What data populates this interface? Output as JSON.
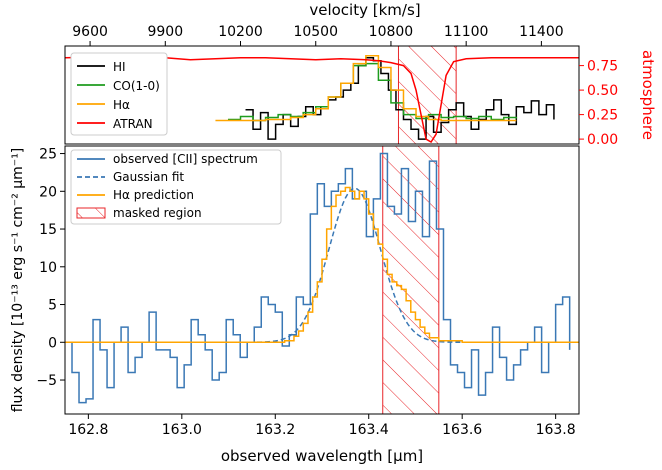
{
  "chart_data": [
    {
      "panel": "top",
      "type": "line",
      "title": "",
      "xlabel": "velocity [km/s]",
      "xlabel_position": "top",
      "xticks": [
        9600,
        9900,
        10200,
        10500,
        10800,
        11100,
        11400
      ],
      "xlim": [
        9500,
        11550
      ],
      "ylabel_left": "",
      "yticks_left": [],
      "ylim_left": [
        0.0,
        1.0
      ],
      "ylabel_right": "atmosphere",
      "yticks_right": [
        "0.00",
        "0.25",
        "0.50",
        "0.75"
      ],
      "ylim_right": [
        -0.05,
        0.95
      ],
      "legend_position": "top-left",
      "masked_region_velocity": [
        10830,
        11060
      ],
      "series": [
        {
          "name": "HI",
          "color": "#000000",
          "step": true,
          "x": [
            10220,
            10250,
            10280,
            10310,
            10340,
            10370,
            10400,
            10430,
            10460,
            10490,
            10520,
            10550,
            10580,
            10610,
            10640,
            10670,
            10700,
            10730,
            10760,
            10790,
            10820,
            10850,
            10880,
            10910,
            10940,
            10970,
            11000,
            11030,
            11060,
            11090,
            11120,
            11150,
            11180,
            11210,
            11240,
            11270,
            11300,
            11330,
            11360,
            11390,
            11420,
            11450
          ],
          "values": [
            0.35,
            0.15,
            0.32,
            0.05,
            0.2,
            0.3,
            0.18,
            0.28,
            0.38,
            0.3,
            0.38,
            0.45,
            0.48,
            0.55,
            0.62,
            0.8,
            0.88,
            0.85,
            0.72,
            0.55,
            0.35,
            0.25,
            0.15,
            0.05,
            0.28,
            0.12,
            0.22,
            0.35,
            0.42,
            0.28,
            0.15,
            0.25,
            0.35,
            0.45,
            0.3,
            0.2,
            0.38,
            0.32,
            0.44,
            0.3,
            0.4,
            0.25
          ]
        },
        {
          "name": "CO(1-0)",
          "color": "#1e9c1e",
          "step": true,
          "x": [
            10150,
            10200,
            10250,
            10300,
            10350,
            10400,
            10450,
            10500,
            10550,
            10600,
            10650,
            10700,
            10750,
            10800,
            10850,
            10900,
            10950,
            11000,
            11050,
            11100,
            11150,
            11200,
            11250,
            11300
          ],
          "values": [
            0.25,
            0.28,
            0.24,
            0.27,
            0.3,
            0.28,
            0.32,
            0.38,
            0.48,
            0.62,
            0.8,
            0.82,
            0.65,
            0.42,
            0.3,
            0.26,
            0.3,
            0.27,
            0.28,
            0.26,
            0.28,
            0.25,
            0.27,
            0.26
          ]
        },
        {
          "name": "Hα",
          "color": "#ffa500",
          "step": true,
          "x": [
            10100,
            10200,
            10300,
            10400,
            10450,
            10500,
            10550,
            10600,
            10650,
            10700,
            10750,
            10800,
            10850,
            10900,
            10950,
            11000,
            11100,
            11200,
            11300
          ],
          "values": [
            0.24,
            0.24,
            0.25,
            0.27,
            0.3,
            0.36,
            0.48,
            0.62,
            0.82,
            0.9,
            0.78,
            0.55,
            0.36,
            0.28,
            0.25,
            0.24,
            0.24,
            0.24,
            0.24
          ]
        },
        {
          "name": "ATRAN",
          "color": "#ff0000",
          "step": false,
          "x": [
            9500,
            9700,
            9900,
            10000,
            10100,
            10200,
            10300,
            10400,
            10500,
            10600,
            10700,
            10750,
            10800,
            10850,
            10880,
            10900,
            10920,
            10940,
            10960,
            10980,
            11000,
            11020,
            11050,
            11100,
            11200,
            11300,
            11400,
            11550
          ],
          "values": [
            0.88,
            0.89,
            0.88,
            0.86,
            0.87,
            0.88,
            0.88,
            0.87,
            0.86,
            0.87,
            0.86,
            0.85,
            0.83,
            0.8,
            0.72,
            0.55,
            0.3,
            0.05,
            0.02,
            0.1,
            0.4,
            0.7,
            0.84,
            0.87,
            0.88,
            0.88,
            0.88,
            0.88
          ]
        }
      ]
    },
    {
      "panel": "bottom",
      "type": "line",
      "title": "",
      "xlabel": "observed wavelength [μm]",
      "ylabel": "flux density [10⁻¹³ erg s⁻¹ cm⁻² μm⁻¹]",
      "xlim": [
        162.75,
        163.85
      ],
      "ylim": [
        -9.5,
        26.0
      ],
      "xticks": [
        "162.8",
        "163.0",
        "163.2",
        "163.4",
        "163.6",
        "163.8"
      ],
      "yticks": [
        "−5",
        "0",
        "5",
        "10",
        "15",
        "20",
        "25"
      ],
      "grid": false,
      "legend_position": "top-left",
      "masked_region": [
        163.43,
        163.55
      ],
      "masked_region_label": "masked region",
      "series": [
        {
          "name": "observed [CII] spectrum",
          "color": "#3a78b5",
          "style": "step",
          "x": [
            162.75,
            162.765,
            162.78,
            162.795,
            162.81,
            162.825,
            162.84,
            162.855,
            162.87,
            162.885,
            162.9,
            162.915,
            162.93,
            162.945,
            162.96,
            162.975,
            162.99,
            163.005,
            163.02,
            163.035,
            163.05,
            163.065,
            163.08,
            163.095,
            163.11,
            163.125,
            163.14,
            163.155,
            163.17,
            163.185,
            163.2,
            163.215,
            163.23,
            163.245,
            163.26,
            163.275,
            163.29,
            163.305,
            163.32,
            163.335,
            163.35,
            163.365,
            163.38,
            163.395,
            163.41,
            163.425,
            163.44,
            163.455,
            163.47,
            163.485,
            163.5,
            163.515,
            163.53,
            163.545,
            163.56,
            163.575,
            163.59,
            163.605,
            163.62,
            163.635,
            163.65,
            163.665,
            163.68,
            163.695,
            163.71,
            163.725,
            163.74,
            163.755,
            163.77,
            163.785,
            163.8,
            163.815,
            163.83
          ],
          "values": [
            0,
            -4,
            -8,
            -7.5,
            3,
            -1,
            -6,
            0,
            2,
            -4,
            -2,
            0,
            4,
            -1,
            -1,
            -2,
            -6,
            -3,
            3,
            1,
            -1,
            -5,
            -4,
            3,
            1,
            -2,
            0,
            2,
            6,
            5,
            4,
            -0.5,
            1,
            6,
            5,
            17,
            21,
            18,
            20,
            21,
            23,
            19,
            20,
            14,
            19,
            25,
            18,
            17,
            23,
            16,
            20,
            14,
            24,
            15,
            3,
            -3,
            -4,
            -6,
            -1,
            -7,
            -4,
            2,
            -2,
            -5,
            -3,
            -1,
            0,
            2,
            -4,
            0,
            5,
            6,
            -1
          ]
        },
        {
          "name": "Gaussian fit",
          "color": "#3a78b5",
          "style": "dashed",
          "amplitude": 20.4,
          "center": 163.37,
          "sigma": 0.055
        },
        {
          "name": "Hα prediction",
          "color": "#ffa500",
          "style": "step",
          "x": [
            162.75,
            163.1,
            163.2,
            163.22,
            163.24,
            163.25,
            163.26,
            163.27,
            163.28,
            163.29,
            163.3,
            163.31,
            163.32,
            163.33,
            163.34,
            163.35,
            163.36,
            163.37,
            163.38,
            163.39,
            163.4,
            163.41,
            163.42,
            163.43,
            163.44,
            163.45,
            163.46,
            163.47,
            163.48,
            163.49,
            163.5,
            163.51,
            163.52,
            163.53,
            163.55,
            163.6,
            163.85
          ],
          "values": [
            0,
            0,
            0,
            0.2,
            0.8,
            1.5,
            2.5,
            4,
            6,
            8,
            11,
            15,
            18,
            19.5,
            20,
            20.5,
            20,
            19,
            20,
            19,
            17,
            15,
            13,
            11,
            9,
            8,
            7.5,
            7,
            5.5,
            4,
            3,
            2,
            1.2,
            0.6,
            0.2,
            0,
            0
          ]
        }
      ]
    }
  ]
}
